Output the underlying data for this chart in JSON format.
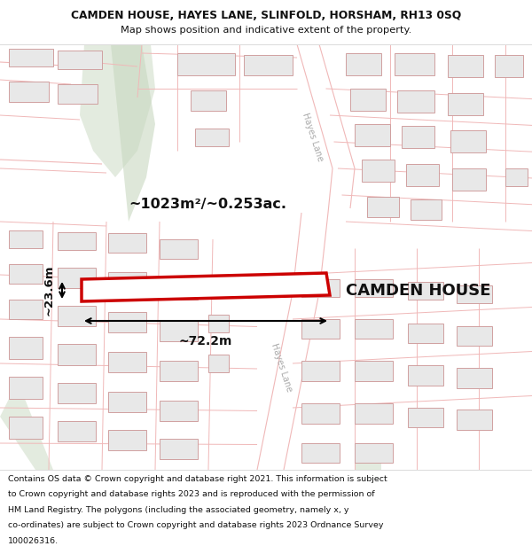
{
  "title_line1": "CAMDEN HOUSE, HAYES LANE, SLINFOLD, HORSHAM, RH13 0SQ",
  "title_line2": "Map shows position and indicative extent of the property.",
  "footer_text": "Contains OS data © Crown copyright and database right 2021. This information is subject to Crown copyright and database rights 2023 and is reproduced with the permission of HM Land Registry. The polygons (including the associated geometry, namely x, y co-ordinates) are subject to Crown copyright and database rights 2023 Ordnance Survey 100026316.",
  "map_bg": "#ffffff",
  "title_bg": "#ffffff",
  "footer_bg": "#ffffff",
  "road_line": "#f0b8b8",
  "building_fill": "#e8e8e8",
  "building_outline": "#d0a0a0",
  "highlight_fill": "#ffffff",
  "highlight_outline": "#cc0000",
  "green_fill": "#c8d8c0",
  "text_color": "#111111",
  "gray_text": "#aaaaaa",
  "annotation_lw": 1.5,
  "prop_lw": 2.5
}
